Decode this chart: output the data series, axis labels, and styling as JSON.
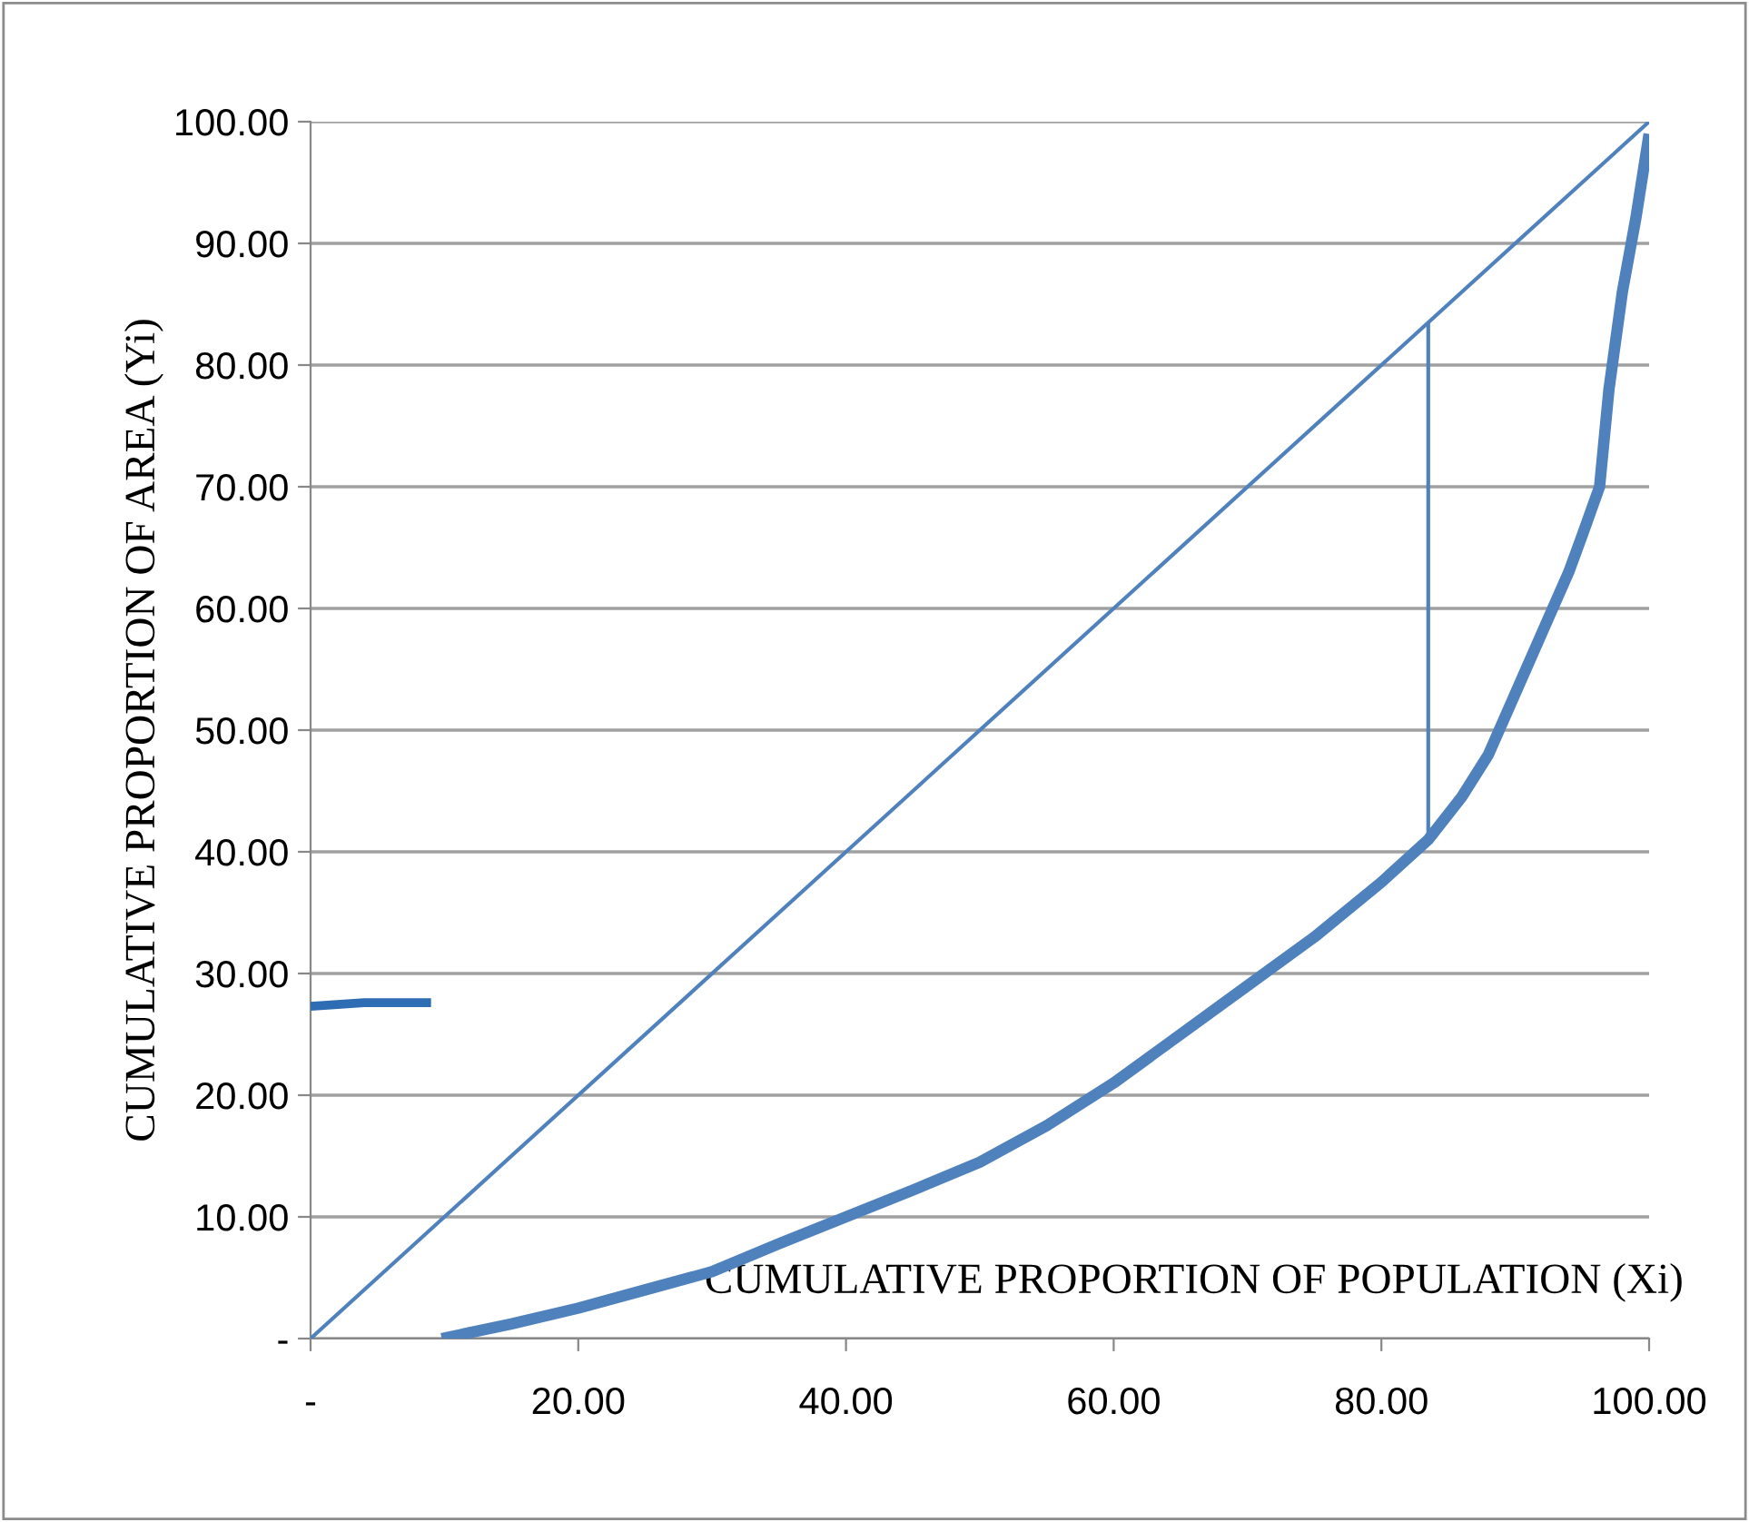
{
  "chart_data": {
    "type": "line",
    "xlabel": "CUMULATIVE PROPORTION OF POPULATION (Xi)",
    "ylabel": "CUMULATIVE PROPORTION OF AREA (Yi)",
    "series": [
      {
        "color": "#4f81bd",
        "x": [
          0,
          100
        ],
        "values": [
          0,
          100
        ]
      },
      {
        "color": "#4f81bd",
        "x": [
          9.8,
          15,
          20,
          25,
          30,
          35,
          40,
          45,
          50,
          55,
          60,
          65,
          70,
          75,
          80,
          83.5,
          86,
          88,
          90,
          92,
          94,
          95,
          96.3,
          97,
          98,
          99,
          100
        ],
        "values": [
          0,
          1.2,
          2.5,
          4,
          5.5,
          7.8,
          10,
          12.2,
          14.5,
          17.5,
          21,
          25,
          29,
          33,
          37.5,
          41,
          44.5,
          48,
          53,
          58,
          63,
          66,
          70,
          78,
          86,
          92,
          99
        ]
      },
      {
        "color": "#4f81bd",
        "x": [
          83.5,
          83.5
        ],
        "values": [
          41,
          83.5
        ]
      },
      {
        "color": "#2e6db4",
        "x": [
          0,
          4,
          9
        ],
        "values": [
          27.3,
          27.6,
          27.6
        ]
      }
    ],
    "xlim": [
      0,
      100
    ],
    "ylim": [
      0,
      100
    ],
    "xticks": [
      {
        "value": 0,
        "label": "-"
      },
      {
        "value": 20,
        "label": "20.00"
      },
      {
        "value": 40,
        "label": "40.00"
      },
      {
        "value": 60,
        "label": "60.00"
      },
      {
        "value": 80,
        "label": "80.00"
      },
      {
        "value": 100,
        "label": "100.00"
      }
    ],
    "yticks": [
      {
        "value": 0,
        "label": "-"
      },
      {
        "value": 10,
        "label": "10.00"
      },
      {
        "value": 20,
        "label": "20.00"
      },
      {
        "value": 30,
        "label": "30.00"
      },
      {
        "value": 40,
        "label": "40.00"
      },
      {
        "value": 50,
        "label": "50.00"
      },
      {
        "value": 60,
        "label": "60.00"
      },
      {
        "value": 70,
        "label": "70.00"
      },
      {
        "value": 80,
        "label": "80.00"
      },
      {
        "value": 90,
        "label": "90.00"
      },
      {
        "value": 100,
        "label": "100.00"
      }
    ],
    "grid": "y",
    "marker": "none",
    "line_style": "solid"
  }
}
